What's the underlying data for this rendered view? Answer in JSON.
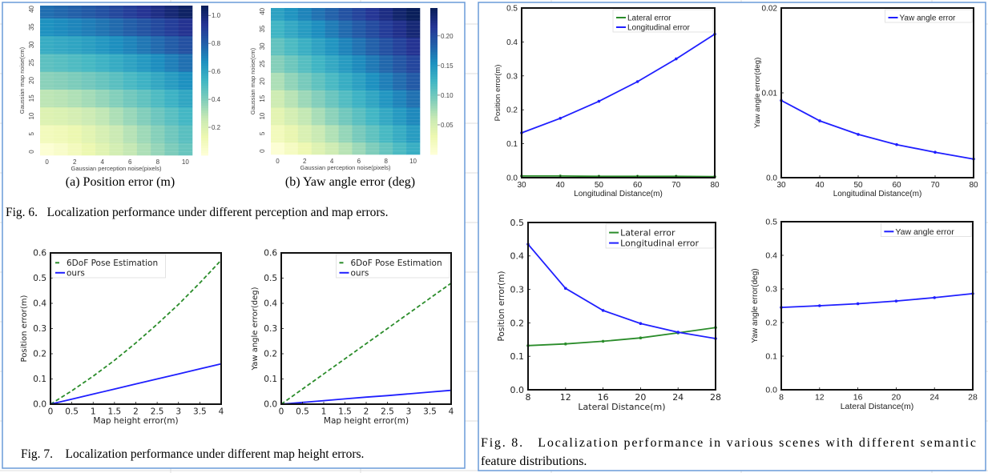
{
  "figures": {
    "fig6_caption": "Fig. 6.   Localization performance under different perception and map errors.",
    "fig6a_label": "(a)  Position error (m)",
    "fig6b_label": "(b)  Yaw angle error (deg)",
    "fig7_caption": "Fig. 7.    Localization performance under different map height errors.",
    "fig8_caption_line1": "Fig. 8.   Localization performance in various scenes with different semantic",
    "fig8_caption_line2": "feature distributions."
  },
  "colors": {
    "panel_border": "#6a9bd8",
    "sheet_grid": "#dcdcdc",
    "blue_series": "#1f1fff",
    "green_series": "#2a8c2a"
  },
  "chart_data": [
    {
      "type": "heatmap",
      "xlabel": "Gaussian perception noise(pixels)",
      "ylabel": "Gaussian map noise(cm)",
      "x": [
        0,
        1,
        2,
        3,
        4,
        5,
        6,
        7,
        8,
        9,
        10
      ],
      "y": [
        0,
        5,
        10,
        15,
        20,
        25,
        30,
        35,
        40
      ],
      "xticks": [
        "0",
        "2",
        "4",
        "6",
        "8",
        "10"
      ],
      "yticks": [
        "0",
        "5",
        "10",
        "15",
        "20",
        "25",
        "30",
        "35",
        "40"
      ],
      "colormap": "YlGnBu",
      "colorbar_range": [
        0,
        1.07
      ],
      "colorbar_ticks": [
        "0.2",
        "0.4",
        "0.6",
        "0.8",
        "1.0"
      ],
      "values": [
        [
          0.02,
          0.049,
          0.092,
          0.136,
          0.181,
          0.226,
          0.271,
          0.316,
          0.361,
          0.405,
          0.45
        ],
        [
          0.097,
          0.109,
          0.136,
          0.172,
          0.213,
          0.255,
          0.299,
          0.344,
          0.389,
          0.434,
          0.48
        ],
        [
          0.191,
          0.2,
          0.219,
          0.246,
          0.278,
          0.315,
          0.355,
          0.396,
          0.44,
          0.484,
          0.529
        ],
        [
          0.286,
          0.295,
          0.312,
          0.334,
          0.362,
          0.394,
          0.429,
          0.467,
          0.508,
          0.55,
          0.593
        ],
        [
          0.381,
          0.391,
          0.407,
          0.428,
          0.453,
          0.482,
          0.515,
          0.55,
          0.588,
          0.628,
          0.669
        ],
        [
          0.475,
          0.488,
          0.504,
          0.524,
          0.548,
          0.576,
          0.607,
          0.64,
          0.676,
          0.715,
          0.755
        ],
        [
          0.57,
          0.584,
          0.601,
          0.622,
          0.646,
          0.673,
          0.703,
          0.736,
          0.77,
          0.808,
          0.846
        ],
        [
          0.665,
          0.681,
          0.699,
          0.721,
          0.745,
          0.772,
          0.802,
          0.834,
          0.868,
          0.905,
          0.943
        ],
        [
          0.76,
          0.778,
          0.798,
          0.82,
          0.845,
          0.873,
          0.903,
          0.935,
          0.969,
          1.005,
          1.043
        ]
      ]
    },
    {
      "type": "heatmap",
      "xlabel": "Gaussian perception noise(pixels)",
      "ylabel": "Gaussian map noise(cm)",
      "x": [
        0,
        1,
        2,
        3,
        4,
        5,
        6,
        7,
        8,
        9,
        10
      ],
      "y": [
        0,
        5,
        10,
        15,
        20,
        25,
        30,
        35,
        40
      ],
      "xticks": [
        "0",
        "2",
        "4",
        "6",
        "8",
        "10"
      ],
      "yticks": [
        "0",
        "5",
        "10",
        "15",
        "20",
        "25",
        "30",
        "35",
        "40"
      ],
      "colormap": "YlGnBu",
      "colorbar_range": [
        0,
        0.247
      ],
      "colorbar_ticks": [
        "0.05",
        "0.10",
        "0.15",
        "0.20"
      ],
      "values": [
        [
          0.005,
          0.018,
          0.03,
          0.043,
          0.055,
          0.068,
          0.08,
          0.093,
          0.105,
          0.118,
          0.13
        ],
        [
          0.022,
          0.034,
          0.047,
          0.059,
          0.071,
          0.083,
          0.096,
          0.108,
          0.12,
          0.132,
          0.145
        ],
        [
          0.039,
          0.051,
          0.063,
          0.075,
          0.087,
          0.099,
          0.111,
          0.123,
          0.135,
          0.147,
          0.159
        ],
        [
          0.056,
          0.068,
          0.08,
          0.091,
          0.103,
          0.115,
          0.127,
          0.138,
          0.15,
          0.162,
          0.174
        ],
        [
          0.073,
          0.085,
          0.096,
          0.108,
          0.119,
          0.131,
          0.142,
          0.154,
          0.165,
          0.177,
          0.188
        ],
        [
          0.09,
          0.101,
          0.113,
          0.124,
          0.135,
          0.146,
          0.158,
          0.169,
          0.18,
          0.191,
          0.203
        ],
        [
          0.107,
          0.118,
          0.129,
          0.14,
          0.151,
          0.162,
          0.173,
          0.184,
          0.195,
          0.206,
          0.217
        ],
        [
          0.124,
          0.135,
          0.146,
          0.156,
          0.167,
          0.178,
          0.189,
          0.199,
          0.21,
          0.221,
          0.232
        ],
        [
          0.141,
          0.152,
          0.162,
          0.173,
          0.183,
          0.194,
          0.204,
          0.215,
          0.225,
          0.236,
          0.246
        ]
      ]
    },
    {
      "type": "line",
      "xlabel": "Map height error(m)",
      "ylabel": "Position error(m)",
      "xlim": [
        0,
        4
      ],
      "ylim": [
        0,
        0.6
      ],
      "xticks": [
        "0",
        "0.5",
        "1",
        "1.5",
        "2",
        "2.5",
        "3",
        "3.5",
        "4"
      ],
      "yticks": [
        "0.0",
        "0.1",
        "0.2",
        "0.3",
        "0.4",
        "0.5",
        "0.6"
      ],
      "legend": "upper left",
      "x": [
        0,
        0.5,
        1,
        1.5,
        2,
        2.5,
        3,
        3.5,
        4
      ],
      "series": [
        {
          "name": "6DoF Pose Estimation",
          "color": "#2a8c2a",
          "style": "dashed",
          "values": [
            0,
            0.053,
            0.111,
            0.174,
            0.243,
            0.317,
            0.396,
            0.481,
            0.571
          ]
        },
        {
          "name": "ours",
          "color": "#1f1fff",
          "style": "solid",
          "values": [
            0,
            0.02,
            0.04,
            0.06,
            0.08,
            0.1,
            0.12,
            0.14,
            0.16
          ]
        }
      ]
    },
    {
      "type": "line",
      "xlabel": "Map height error(m)",
      "ylabel": "Yaw angle error(deg)",
      "xlim": [
        0,
        4
      ],
      "ylim": [
        0,
        0.6
      ],
      "xticks": [
        "0",
        "0.5",
        "1",
        "1.5",
        "2",
        "2.5",
        "3",
        "3.5",
        "4"
      ],
      "yticks": [
        "0.0",
        "0.1",
        "0.2",
        "0.3",
        "0.4",
        "0.5",
        "0.6"
      ],
      "legend": "upper right",
      "x": [
        0,
        0.5,
        1,
        1.5,
        2,
        2.5,
        3,
        3.5,
        4
      ],
      "series": [
        {
          "name": "6DoF Pose Estimation",
          "color": "#2a8c2a",
          "style": "dashed",
          "values": [
            0,
            0.06,
            0.12,
            0.18,
            0.24,
            0.3,
            0.36,
            0.42,
            0.48
          ]
        },
        {
          "name": "ours",
          "color": "#1f1fff",
          "style": "solid",
          "values": [
            0,
            0.007,
            0.014,
            0.021,
            0.028,
            0.034,
            0.041,
            0.048,
            0.055
          ]
        }
      ]
    },
    {
      "type": "line",
      "xlabel": "Longitudinal Distance(m)",
      "ylabel": "Position error(m)",
      "xlim": [
        30,
        80
      ],
      "ylim": [
        0,
        0.5
      ],
      "xticks": [
        "30",
        "40",
        "50",
        "60",
        "70",
        "80"
      ],
      "yticks": [
        "0.0",
        "0.1",
        "0.2",
        "0.3",
        "0.4",
        "0.5"
      ],
      "legend": "upper right",
      "x": [
        30,
        40,
        50,
        60,
        70,
        80
      ],
      "series": [
        {
          "name": "Lateral error",
          "color": "#2a8c2a",
          "style": "solid",
          "markers": true,
          "values": [
            0.005,
            0.005,
            0.004,
            0.004,
            0.004,
            0.003
          ]
        },
        {
          "name": "Longitudinal error",
          "color": "#1f1fff",
          "style": "solid",
          "markers": true,
          "values": [
            0.132,
            0.175,
            0.225,
            0.283,
            0.35,
            0.423
          ]
        }
      ]
    },
    {
      "type": "line",
      "xlabel": "Longitudinal Distance(m)",
      "ylabel": "Yaw angle error(deg)",
      "xlim": [
        30,
        80
      ],
      "ylim": [
        0,
        0.02
      ],
      "xticks": [
        "30",
        "40",
        "50",
        "60",
        "70",
        "80"
      ],
      "yticks": [
        "0.0",
        "0.01",
        "0.02"
      ],
      "legend": "upper right",
      "x": [
        30,
        40,
        50,
        60,
        70,
        80
      ],
      "series": [
        {
          "name": "Yaw angle error",
          "color": "#1f1fff",
          "style": "solid",
          "markers": true,
          "values": [
            0.0091,
            0.0067,
            0.0051,
            0.0039,
            0.003,
            0.0022
          ]
        }
      ]
    },
    {
      "type": "line",
      "xlabel": "Lateral Distance(m)",
      "ylabel": "Position error(m)",
      "xlim": [
        8,
        28
      ],
      "ylim": [
        0,
        0.5
      ],
      "xticks": [
        "8",
        "12",
        "16",
        "20",
        "24",
        "28"
      ],
      "yticks": [
        "0.0",
        "0.1",
        "0.2",
        "0.3",
        "0.4",
        "0.5"
      ],
      "legend": "upper right",
      "x": [
        8,
        12,
        16,
        20,
        24,
        28
      ],
      "series": [
        {
          "name": "Lateral error",
          "color": "#2a8c2a",
          "style": "solid",
          "markers": true,
          "values": [
            0.132,
            0.137,
            0.145,
            0.155,
            0.17,
            0.186
          ]
        },
        {
          "name": "Longitudinal error",
          "color": "#1f1fff",
          "style": "solid",
          "markers": true,
          "values": [
            0.435,
            0.303,
            0.237,
            0.198,
            0.172,
            0.153
          ]
        }
      ]
    },
    {
      "type": "line",
      "xlabel": "Lateral Distance(m)",
      "ylabel": "Yaw angle error(deg)",
      "xlim": [
        8,
        28
      ],
      "ylim": [
        0,
        0.5
      ],
      "xticks": [
        "8",
        "12",
        "16",
        "20",
        "24",
        "28"
      ],
      "yticks": [
        "0.0",
        "0.1",
        "0.2",
        "0.3",
        "0.4",
        "0.5"
      ],
      "legend": "upper right",
      "x": [
        8,
        12,
        16,
        20,
        24,
        28
      ],
      "series": [
        {
          "name": "Yaw angle error",
          "color": "#1f1fff",
          "style": "solid",
          "markers": true,
          "values": [
            0.245,
            0.25,
            0.256,
            0.264,
            0.274,
            0.286
          ]
        }
      ]
    }
  ]
}
